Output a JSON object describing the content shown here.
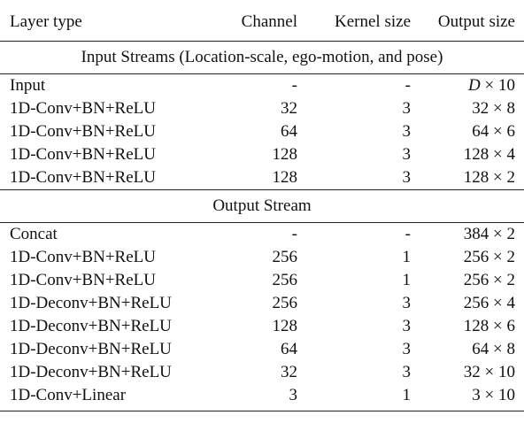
{
  "headers": [
    "Layer type",
    "Channel",
    "Kernel size",
    "Output size"
  ],
  "sections": [
    {
      "title": "Input Streams (Location-scale, ego-motion, and pose)",
      "rows": [
        {
          "layer": "Input",
          "channel": "-",
          "kernel": "-",
          "output": "D × 10"
        },
        {
          "layer": "1D-Conv+BN+ReLU",
          "channel": "32",
          "kernel": "3",
          "output": "32 × 8"
        },
        {
          "layer": "1D-Conv+BN+ReLU",
          "channel": "64",
          "kernel": "3",
          "output": "64 × 6"
        },
        {
          "layer": "1D-Conv+BN+ReLU",
          "channel": "128",
          "kernel": "3",
          "output": "128 × 4"
        },
        {
          "layer": "1D-Conv+BN+ReLU",
          "channel": "128",
          "kernel": "3",
          "output": "128 × 2"
        }
      ]
    },
    {
      "title": "Output Stream",
      "rows": [
        {
          "layer": "Concat",
          "channel": "-",
          "kernel": "-",
          "output": "384 × 2"
        },
        {
          "layer": "1D-Conv+BN+ReLU",
          "channel": "256",
          "kernel": "1",
          "output": "256 × 2"
        },
        {
          "layer": "1D-Conv+BN+ReLU",
          "channel": "256",
          "kernel": "1",
          "output": "256 × 2"
        },
        {
          "layer": "1D-Deconv+BN+ReLU",
          "channel": "256",
          "kernel": "3",
          "output": "256 × 4"
        },
        {
          "layer": "1D-Deconv+BN+ReLU",
          "channel": "128",
          "kernel": "3",
          "output": "128 × 6"
        },
        {
          "layer": "1D-Deconv+BN+ReLU",
          "channel": "64",
          "kernel": "3",
          "output": "64 × 8"
        },
        {
          "layer": "1D-Deconv+BN+ReLU",
          "channel": "32",
          "kernel": "3",
          "output": "32 × 10"
        },
        {
          "layer": "1D-Conv+Linear",
          "channel": "3",
          "kernel": "1",
          "output": "3 × 10"
        }
      ]
    }
  ]
}
